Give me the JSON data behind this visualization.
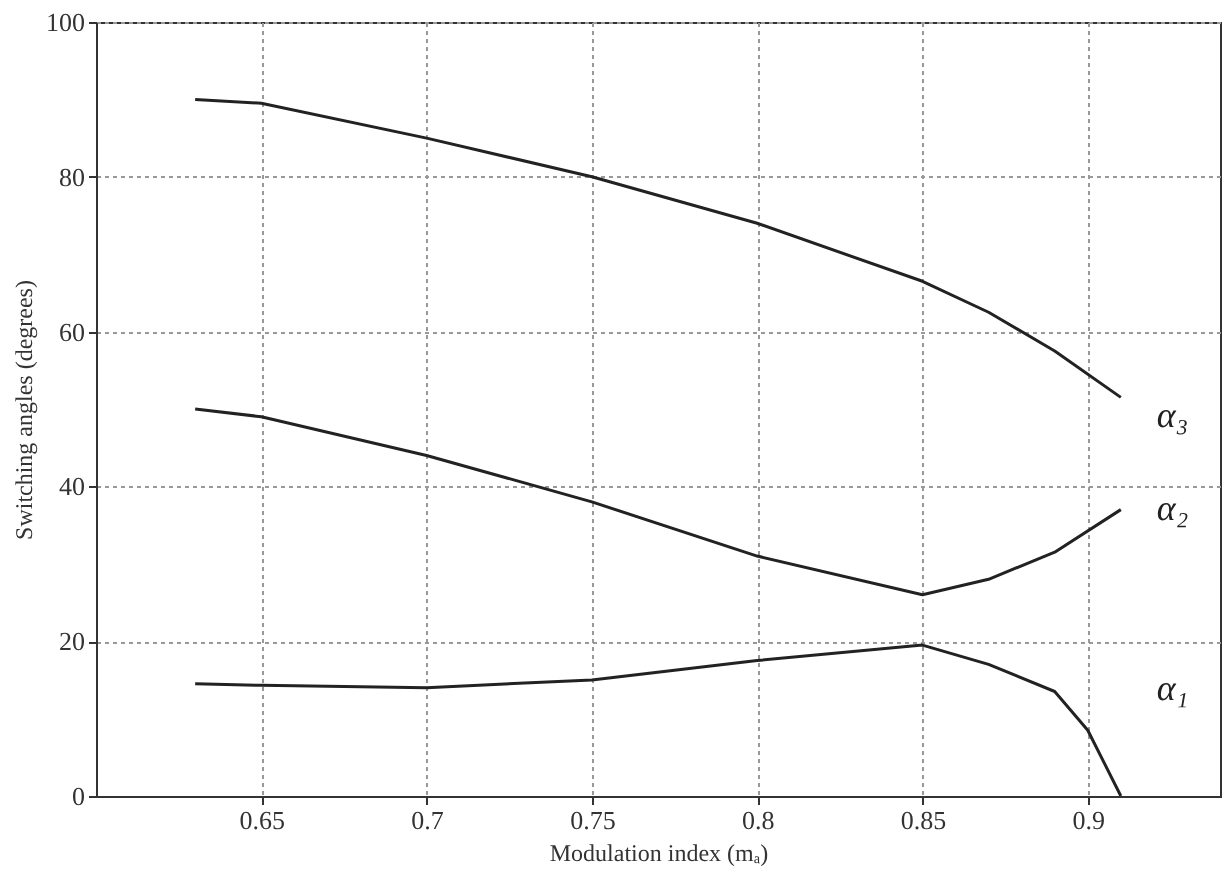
{
  "chart_data": {
    "type": "line",
    "xlabel": "Modulation index (mₐ)",
    "ylabel": "Switching angles (degrees)",
    "xlim": [
      0.6,
      0.94
    ],
    "xticks": [
      0.65,
      0.7,
      0.75,
      0.8,
      0.85,
      0.9
    ],
    "ylim": [
      0,
      100
    ],
    "yticks": [
      0,
      20,
      40,
      60,
      80,
      100
    ],
    "grid": true,
    "legend": false,
    "line_style": "solid",
    "marker": "none",
    "series": [
      {
        "name": "α₃",
        "color": "#222222",
        "x": [
          0.63,
          0.65,
          0.7,
          0.75,
          0.8,
          0.85,
          0.87,
          0.89,
          0.91
        ],
        "values": [
          90,
          89.5,
          85,
          80,
          74,
          66.5,
          62.5,
          57.5,
          51.5
        ]
      },
      {
        "name": "α₂",
        "color": "#222222",
        "x": [
          0.63,
          0.65,
          0.7,
          0.75,
          0.8,
          0.85,
          0.87,
          0.89,
          0.91
        ],
        "values": [
          50,
          49,
          44,
          38,
          31,
          26,
          28,
          31.5,
          37
        ]
      },
      {
        "name": "α₁",
        "color": "#222222",
        "x": [
          0.63,
          0.65,
          0.7,
          0.75,
          0.8,
          0.85,
          0.87,
          0.89,
          0.9,
          0.91
        ],
        "values": [
          14.5,
          14.3,
          14,
          15,
          17.5,
          19.5,
          17,
          13.5,
          8.5,
          0
        ]
      }
    ]
  }
}
